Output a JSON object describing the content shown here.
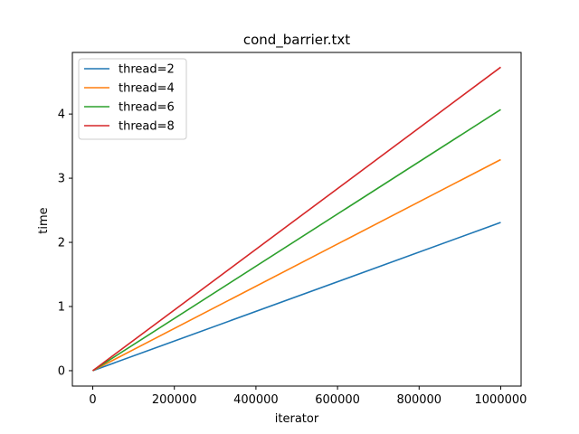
{
  "chart_data": {
    "type": "line",
    "title": "cond_barrier.txt",
    "xlabel": "iterator",
    "ylabel": "time",
    "xlim": [
      -50000,
      1050000
    ],
    "ylim": [
      -0.24,
      4.96
    ],
    "x_ticks": [
      0,
      200000,
      400000,
      600000,
      800000,
      1000000
    ],
    "x_tick_labels": [
      "0",
      "200000",
      "400000",
      "600000",
      "800000",
      "1000000"
    ],
    "y_ticks": [
      0,
      1,
      2,
      3,
      4
    ],
    "y_tick_labels": [
      "0",
      "1",
      "2",
      "3",
      "4"
    ],
    "grid": false,
    "legend_position": "upper-left",
    "x": [
      0,
      1000000
    ],
    "series": [
      {
        "name": "thread=2",
        "color": "#1f77b4",
        "x": [
          0,
          1000000
        ],
        "values": [
          0,
          2.31
        ]
      },
      {
        "name": "thread=4",
        "color": "#ff7f0e",
        "x": [
          0,
          1000000
        ],
        "values": [
          0,
          3.29
        ]
      },
      {
        "name": "thread=6",
        "color": "#2ca02c",
        "x": [
          0,
          1000000
        ],
        "values": [
          0,
          4.07
        ]
      },
      {
        "name": "thread=8",
        "color": "#d62728",
        "x": [
          0,
          1000000
        ],
        "values": [
          0,
          4.73
        ]
      }
    ]
  }
}
